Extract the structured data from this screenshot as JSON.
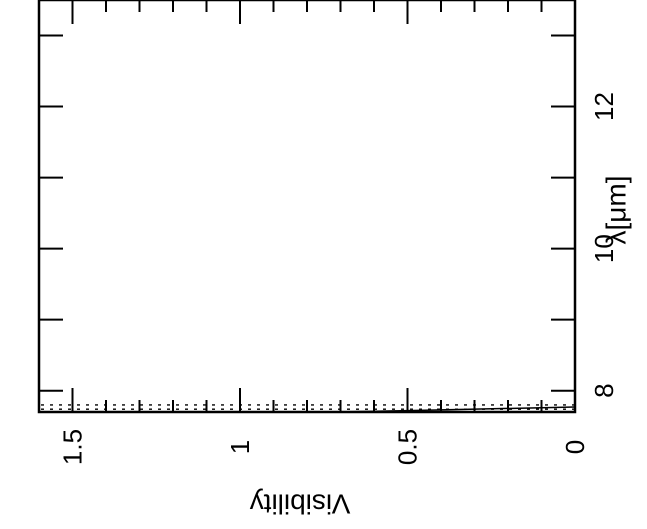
{
  "chart_data": {
    "type": "line",
    "orientation": "rotated-90",
    "xlabel": "λ[μm]",
    "ylabel": "Visibility",
    "xlim": [
      7.7,
      13.5
    ],
    "ylim": [
      0,
      1.6
    ],
    "x_ticks": [
      8,
      10,
      12
    ],
    "x_tick_labels": [
      "8",
      "10",
      "12"
    ],
    "y_ticks": [
      0,
      0.5,
      1,
      1.5
    ],
    "y_tick_labels": [
      "0",
      "0.5",
      "1",
      "1.5"
    ],
    "grid": false,
    "series": [
      {
        "style": "solid",
        "x": [
          7.77,
          7.72,
          7.7
        ],
        "y": [
          0.0,
          0.5,
          0.72
        ]
      },
      {
        "style": "dotted",
        "x": [
          7.8,
          7.8
        ],
        "y": [
          0.0,
          1.6
        ]
      },
      {
        "style": "dotted",
        "x": [
          7.74,
          7.74
        ],
        "y": [
          0.0,
          1.6
        ]
      }
    ]
  }
}
